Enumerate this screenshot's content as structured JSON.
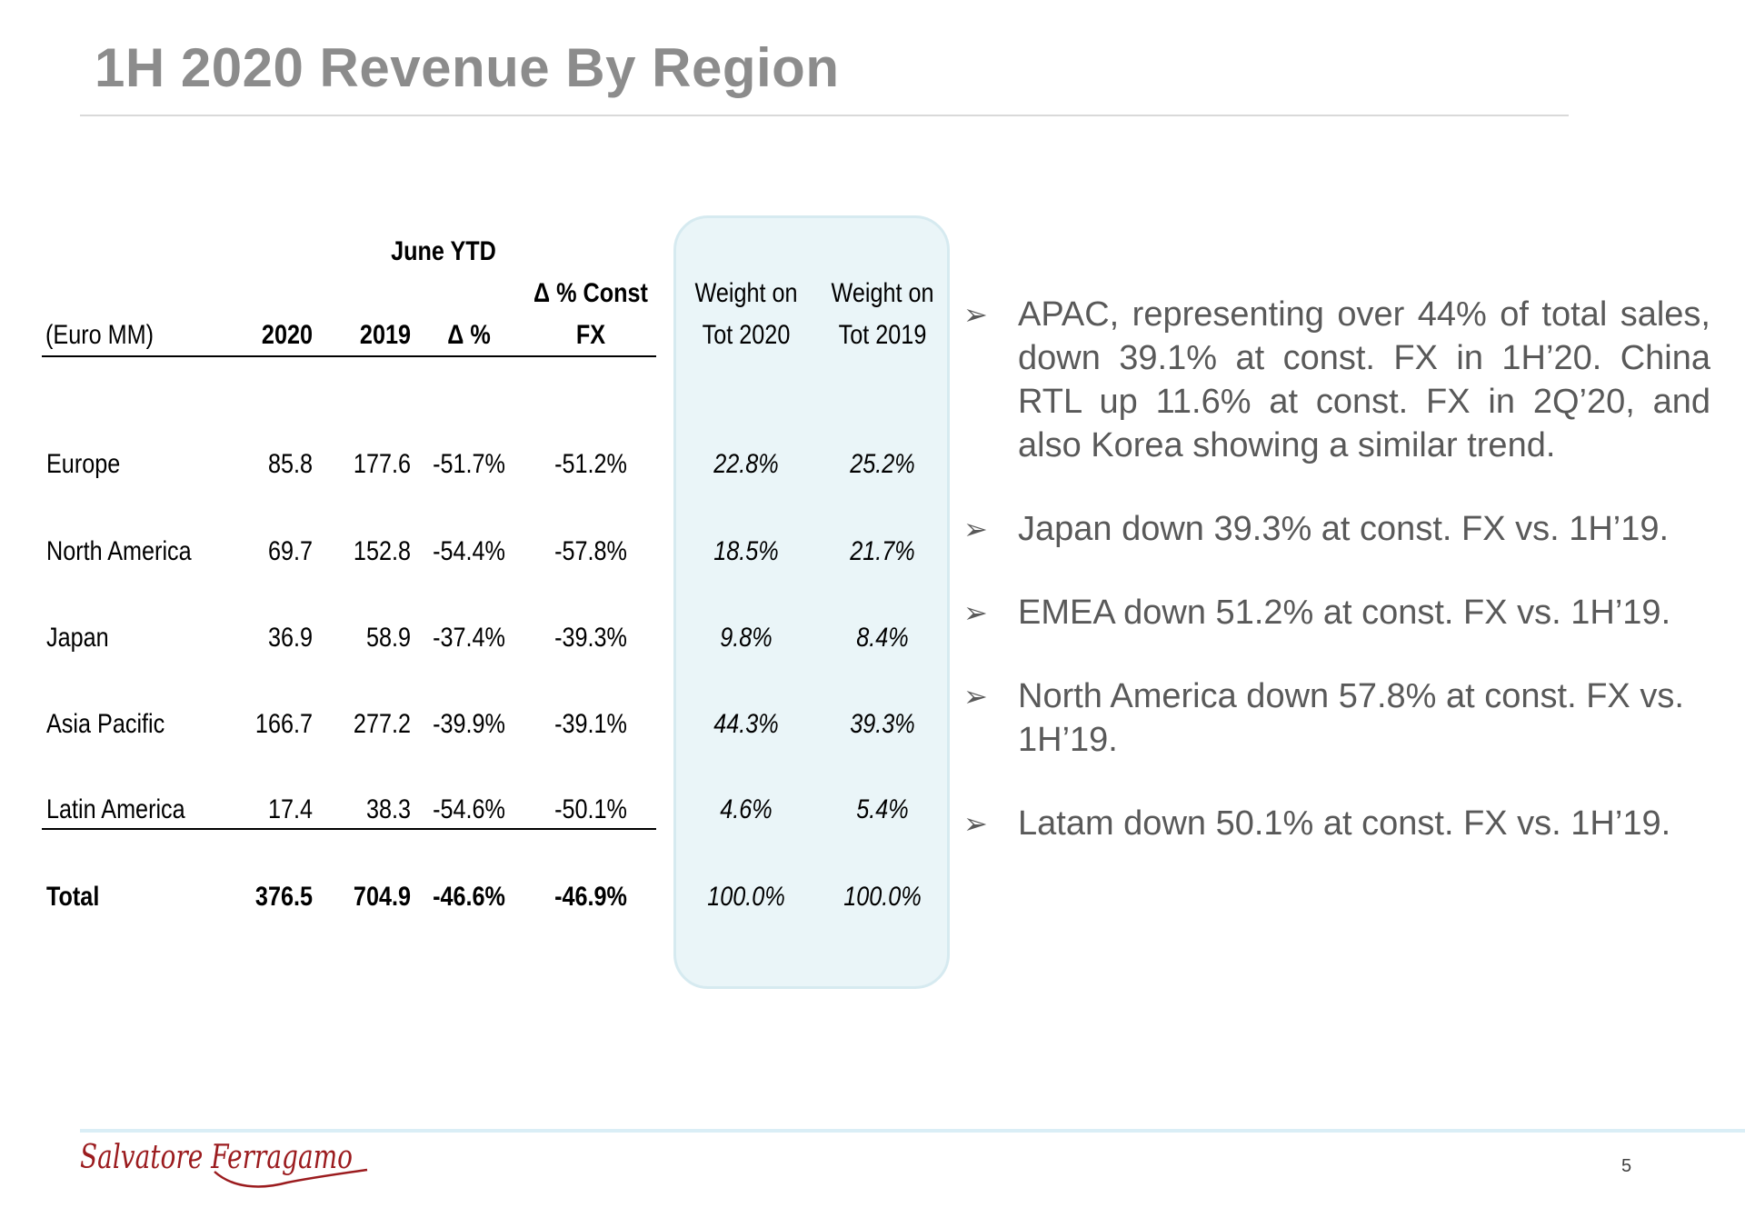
{
  "slide": {
    "title": "1H 2020 Revenue By Region",
    "page_number": "5"
  },
  "table": {
    "group_header": "June YTD",
    "columns": {
      "unit": "(Euro MM)",
      "y2020": "2020",
      "y2019": "2019",
      "delta": "Δ %",
      "const_fx_top": "Δ % Const",
      "const_fx_bottom": "FX",
      "w2020_top": "Weight on",
      "w2020_bottom": "Tot 2020",
      "w2019_top": "Weight on",
      "w2019_bottom": "Tot 2019"
    },
    "rows": [
      {
        "region": "Europe",
        "v2020": "85.8",
        "v2019": "177.6",
        "delta": "-51.7%",
        "const_fx": "-51.2%",
        "w2020": "22.8%",
        "w2019": "25.2%"
      },
      {
        "region": "North America",
        "v2020": "69.7",
        "v2019": "152.8",
        "delta": "-54.4%",
        "const_fx": "-57.8%",
        "w2020": "18.5%",
        "w2019": "21.7%"
      },
      {
        "region": "Japan",
        "v2020": "36.9",
        "v2019": "58.9",
        "delta": "-37.4%",
        "const_fx": "-39.3%",
        "w2020": "9.8%",
        "w2019": "8.4%"
      },
      {
        "region": "Asia Pacific",
        "v2020": "166.7",
        "v2019": "277.2",
        "delta": "-39.9%",
        "const_fx": "-39.1%",
        "w2020": "44.3%",
        "w2019": "39.3%"
      },
      {
        "region": "Latin America",
        "v2020": "17.4",
        "v2019": "38.3",
        "delta": "-54.6%",
        "const_fx": "-50.1%",
        "w2020": "4.6%",
        "w2019": "5.4%"
      }
    ],
    "total": {
      "region": "Total",
      "v2020": "376.5",
      "v2019": "704.9",
      "delta": "-46.6%",
      "const_fx": "-46.9%",
      "w2020": "100.0%",
      "w2019": "100.0%"
    }
  },
  "bullets": [
    "APAC, representing over 44% of total sales, down 39.1% at const. FX in 1H’20. China RTL up 11.6% at const. FX in 2Q’20, and also Korea showing a similar trend.",
    "Japan down 39.3% at const. FX vs. 1H’19.",
    "EMEA down 51.2% at const. FX vs. 1H’19.",
    "North America down 57.8% at const. FX vs. 1H’19.",
    "Latam down 50.1% at const. FX vs. 1H’19."
  ],
  "bullet_icon": "arrow-bullet-icon",
  "logo": {
    "text": "Salvatore Ferragamo",
    "color": "#9b1b1e"
  },
  "colors": {
    "title": "#8c8c8c",
    "highlight": "#eaf5f8",
    "bullet_text": "#595959"
  }
}
